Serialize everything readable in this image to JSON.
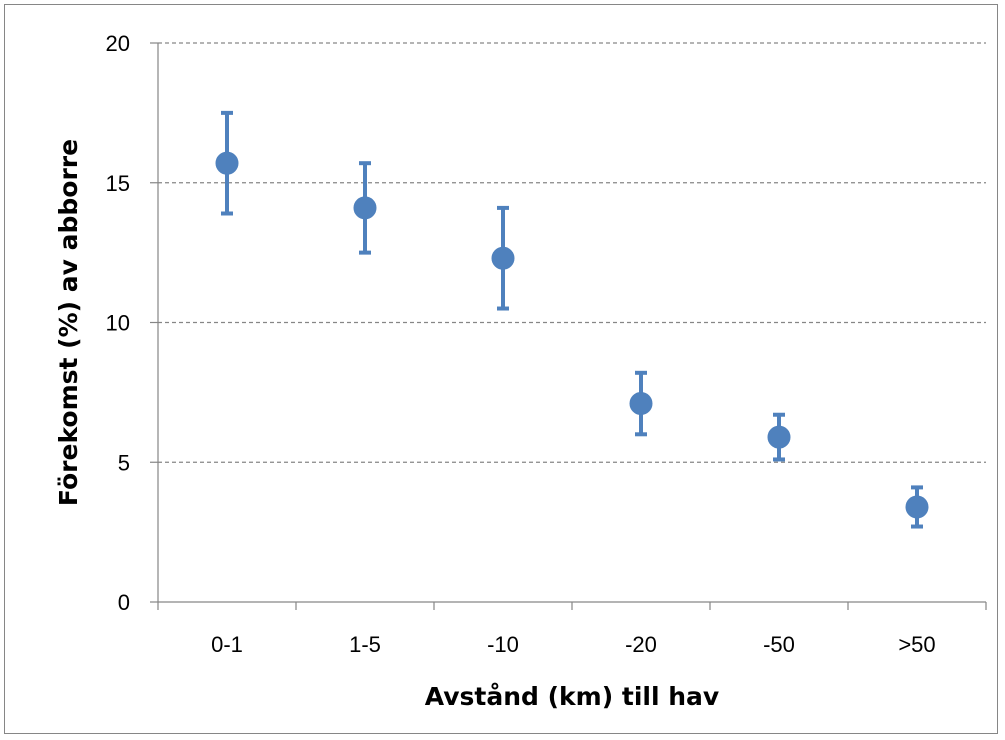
{
  "chart_data": {
    "type": "scatter",
    "title": "",
    "xlabel": "Avstånd (km) till hav",
    "ylabel": "Förekomst (%) av abborre",
    "categories": [
      "0-1",
      "1-5",
      "-10",
      "-20",
      "-50",
      ">50"
    ],
    "series": [
      {
        "values": [
          15.7,
          14.1,
          12.3,
          7.1,
          5.9,
          3.4
        ],
        "error_low": [
          13.9,
          12.5,
          10.5,
          6.0,
          5.1,
          2.7
        ],
        "error_high": [
          17.5,
          15.7,
          14.1,
          8.2,
          6.7,
          4.1
        ]
      }
    ],
    "ylim": [
      0,
      20
    ],
    "yticks": [
      "0",
      "5",
      "10",
      "15",
      "20"
    ],
    "grid": "horizontal dashed",
    "legend": "none",
    "colors": {
      "marker": "#4F81BD",
      "gridline": "#868686",
      "axis": "#868686"
    }
  }
}
